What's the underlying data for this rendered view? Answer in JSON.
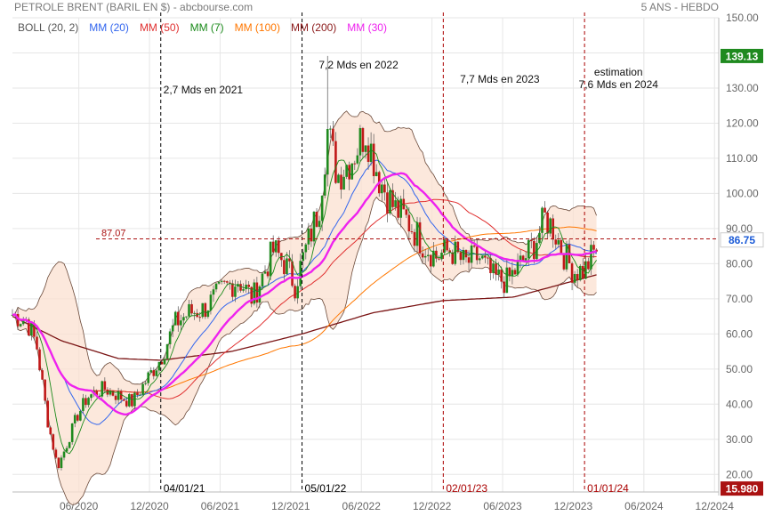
{
  "header": {
    "title": "PETROLE BRENT (BARIL EN $) - abcbourse.com",
    "period": "5 ANS - HEBDO"
  },
  "legend": [
    {
      "label": "BOLL (20, 2)",
      "color": "#555555"
    },
    {
      "label": "MM (20)",
      "color": "#3366ee"
    },
    {
      "label": "MM (50)",
      "color": "#e03030"
    },
    {
      "label": "MM (7)",
      "color": "#1a8a1a"
    },
    {
      "label": "MM (100)",
      "color": "#ff7700"
    },
    {
      "label": "MM (200)",
      "color": "#8b1a1a"
    },
    {
      "label": "MM (30)",
      "color": "#ee22ee"
    }
  ],
  "chart_data": {
    "type": "candlestick",
    "ylim": [
      15,
      150
    ],
    "yticks": [
      "150.00",
      "140.00",
      "130.00",
      "120.00",
      "110.00",
      "100.00",
      "90.00",
      "80.00",
      "70.00",
      "60.00",
      "50.00",
      "40.00",
      "30.00",
      "20.00"
    ],
    "xticks": [
      {
        "label": "06/2020",
        "t": 2020.42
      },
      {
        "label": "12/2020",
        "t": 2020.92
      },
      {
        "label": "06/2021",
        "t": 2021.42
      },
      {
        "label": "12/2021",
        "t": 2021.92
      },
      {
        "label": "06/2022",
        "t": 2022.42
      },
      {
        "label": "12/2022",
        "t": 2022.92
      },
      {
        "label": "06/2023",
        "t": 2023.42
      },
      {
        "label": "12/2023",
        "t": 2023.92
      },
      {
        "label": "06/2024",
        "t": 2024.42
      },
      {
        "label": "12/2024",
        "t": 2024.92
      }
    ],
    "yearLines": [
      {
        "label": "04/01/21",
        "t": 2021.0,
        "color": "#000000"
      },
      {
        "label": "05/01/22",
        "t": 2022.0,
        "color": "#000000"
      },
      {
        "label": "02/01/23",
        "t": 2023.0,
        "color": "#aa0000"
      },
      {
        "label": "01/01/24",
        "t": 2024.0,
        "color": "#aa0000"
      }
    ],
    "price_markers": [
      {
        "label": "139.13",
        "value": 139.13,
        "bg": "#1f8a1f",
        "fg": "#ffffff"
      },
      {
        "label": "86.75",
        "value": 86.75,
        "bg": "#ffffff",
        "fg": "#1a5ad7"
      },
      {
        "label": "15.980",
        "value": 15.98,
        "bg": "#aa1111",
        "fg": "#ffffff"
      }
    ],
    "hline": {
      "label": "87.07",
      "value": 87.07,
      "color": "#aa1111"
    },
    "annotations": [
      {
        "text": "2,7 Mds en 2021",
        "t": 2021.3,
        "v": 128.5
      },
      {
        "text": "7,2 Mds en 2022",
        "t": 2022.4,
        "v": 135.5
      },
      {
        "text": "7,7 Mds en 2023",
        "t": 2023.4,
        "v": 131.5
      },
      {
        "text": "estimation",
        "t": 2024.24,
        "v": 133.5
      },
      {
        "text": "7,6 Mds en 2024",
        "t": 2024.24,
        "v": 130.0
      }
    ],
    "t_start": 2019.95,
    "t_end": 2024.1,
    "price_path": [
      [
        2019.95,
        65.5
      ],
      [
        2020.05,
        64.0
      ],
      [
        2020.12,
        57.0
      ],
      [
        2020.2,
        35.0
      ],
      [
        2020.27,
        22.0
      ],
      [
        2020.33,
        28.0
      ],
      [
        2020.4,
        36.0
      ],
      [
        2020.48,
        42.0
      ],
      [
        2020.6,
        44.5
      ],
      [
        2020.72,
        42.0
      ],
      [
        2020.8,
        40.5
      ],
      [
        2020.9,
        47.0
      ],
      [
        2021.0,
        53.0
      ],
      [
        2021.1,
        63.0
      ],
      [
        2021.2,
        66.0
      ],
      [
        2021.3,
        67.0
      ],
      [
        2021.45,
        73.0
      ],
      [
        2021.55,
        75.5
      ],
      [
        2021.65,
        70.0
      ],
      [
        2021.8,
        84.0
      ],
      [
        2021.88,
        80.0
      ],
      [
        2021.95,
        74.0
      ],
      [
        2022.05,
        87.0
      ],
      [
        2022.12,
        96.0
      ],
      [
        2022.18,
        118.0
      ],
      [
        2022.25,
        105.0
      ],
      [
        2022.35,
        110.0
      ],
      [
        2022.45,
        118.0
      ],
      [
        2022.55,
        104.0
      ],
      [
        2022.65,
        96.0
      ],
      [
        2022.75,
        92.0
      ],
      [
        2022.85,
        86.0
      ],
      [
        2022.95,
        82.0
      ],
      [
        2023.05,
        84.0
      ],
      [
        2023.15,
        80.0
      ],
      [
        2023.25,
        82.0
      ],
      [
        2023.35,
        76.0
      ],
      [
        2023.45,
        75.0
      ],
      [
        2023.55,
        80.0
      ],
      [
        2023.65,
        86.0
      ],
      [
        2023.72,
        93.0
      ],
      [
        2023.78,
        90.0
      ],
      [
        2023.85,
        83.0
      ],
      [
        2023.92,
        78.0
      ],
      [
        2024.0,
        78.0
      ],
      [
        2024.05,
        82.0
      ],
      [
        2024.1,
        85.5
      ]
    ],
    "sma200_path": [
      [
        2019.95,
        65.0
      ],
      [
        2020.3,
        58.0
      ],
      [
        2020.7,
        53.0
      ],
      [
        2021.0,
        52.5
      ],
      [
        2021.5,
        55.0
      ],
      [
        2022.0,
        60.0
      ],
      [
        2022.5,
        66.0
      ],
      [
        2023.0,
        69.5
      ],
      [
        2023.5,
        70.5
      ],
      [
        2024.1,
        77.0
      ]
    ]
  }
}
